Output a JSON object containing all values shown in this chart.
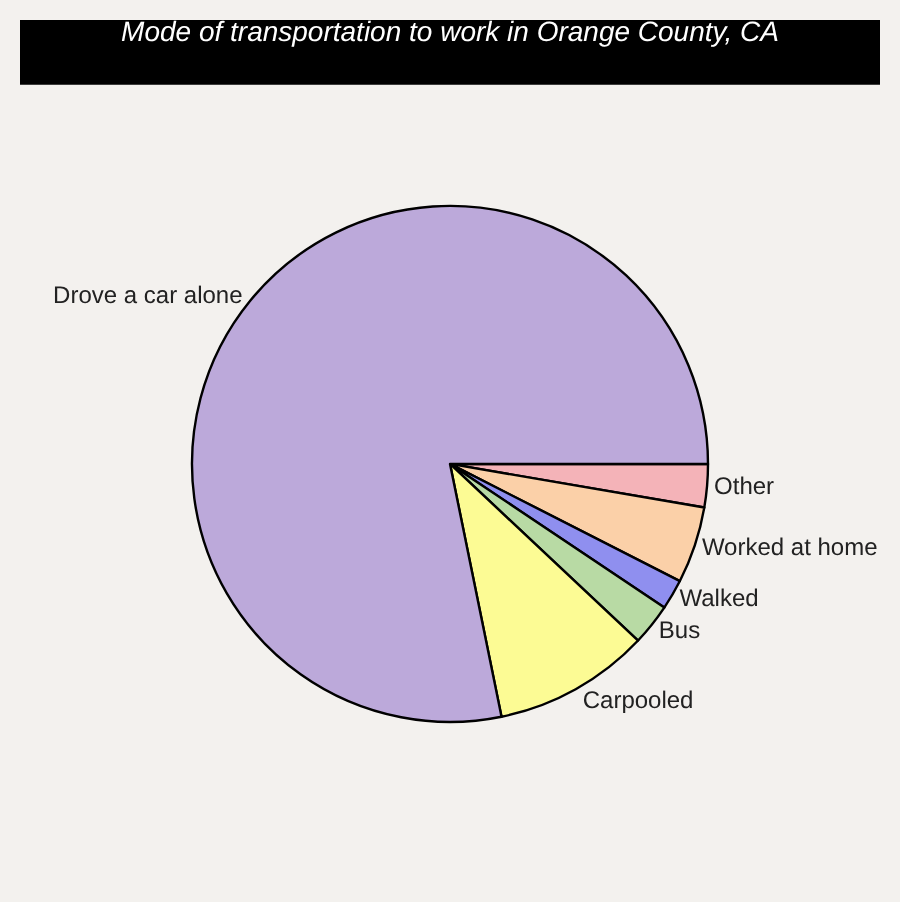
{
  "chart_data": {
    "type": "pie",
    "title": "Mode of transportation to work in Orange County, CA",
    "categories": [
      "Other",
      "Worked at home",
      "Walked",
      "Bus",
      "Carpooled",
      "Drove a car alone"
    ],
    "values": [
      2.7,
      4.8,
      1.9,
      2.6,
      9.8,
      78.2
    ],
    "colors": [
      "#f4b3b8",
      "#fbd0a8",
      "#8f8fef",
      "#b8daa4",
      "#fcfb94",
      "#bca9da"
    ],
    "legend": false
  }
}
